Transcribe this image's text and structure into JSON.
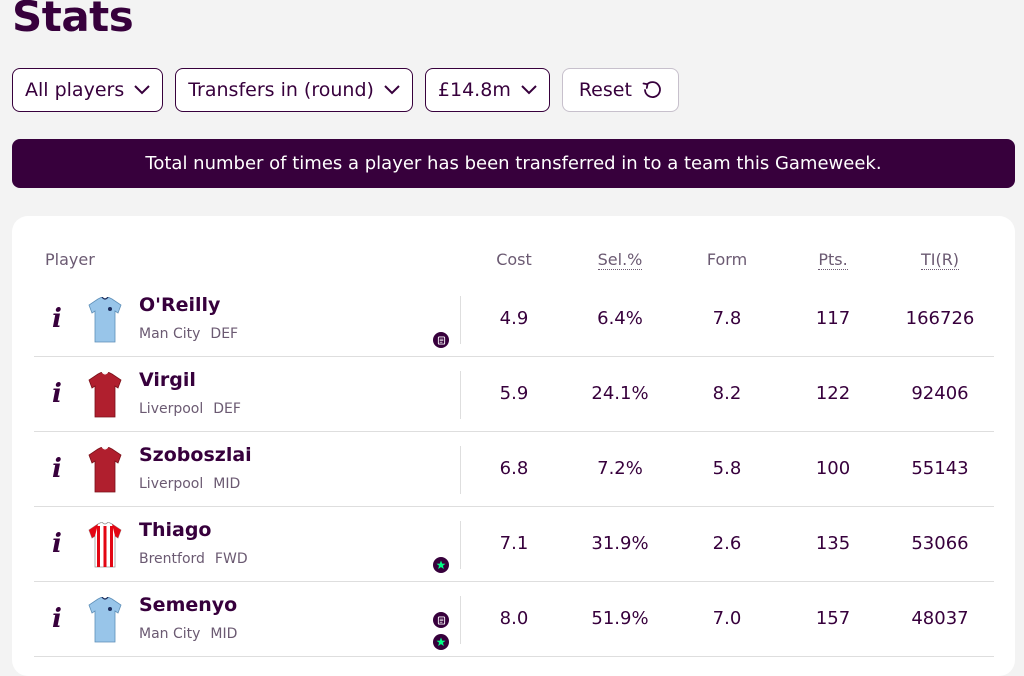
{
  "page": {
    "title": "Stats"
  },
  "filters": {
    "players": "All players",
    "sort": "Transfers in (round)",
    "price": "£14.8m",
    "reset": "Reset"
  },
  "banner": "Total number of times a player has been transferred in to a team this Gameweek.",
  "table": {
    "headers": {
      "player": "Player",
      "cost": "Cost",
      "sel": "Sel.%",
      "form": "Form",
      "pts": "Pts.",
      "ti": "TI(R)"
    },
    "info_glyph": "i",
    "rows": [
      {
        "name": "O'Reilly",
        "team": "Man City",
        "pos": "DEF",
        "cost": "4.9",
        "sel": "6.4%",
        "form": "7.8",
        "pts": "117",
        "ti": "166726",
        "shirt": "man-city-shirt",
        "badges": [
          "news-icon"
        ]
      },
      {
        "name": "Virgil",
        "team": "Liverpool",
        "pos": "DEF",
        "cost": "5.9",
        "sel": "24.1%",
        "form": "8.2",
        "pts": "122",
        "ti": "92406",
        "shirt": "liverpool-shirt",
        "badges": []
      },
      {
        "name": "Szoboszlai",
        "team": "Liverpool",
        "pos": "MID",
        "cost": "6.8",
        "sel": "7.2%",
        "form": "5.8",
        "pts": "100",
        "ti": "55143",
        "shirt": "liverpool-shirt",
        "badges": []
      },
      {
        "name": "Thiago",
        "team": "Brentford",
        "pos": "FWD",
        "cost": "7.1",
        "sel": "31.9%",
        "form": "2.6",
        "pts": "135",
        "ti": "53066",
        "shirt": "brentford-shirt",
        "badges": [
          "star-icon"
        ]
      },
      {
        "name": "Semenyo",
        "team": "Man City",
        "pos": "MID",
        "cost": "8.0",
        "sel": "51.9%",
        "form": "7.0",
        "pts": "157",
        "ti": "48037",
        "shirt": "man-city-shirt",
        "badges": [
          "news-icon",
          "star-icon"
        ]
      }
    ]
  },
  "colors": {
    "primary": "#37003c",
    "muted": "#6b5a72",
    "accent_green": "#00ff87",
    "man_city": "#98c5e9",
    "liverpool": "#b01f2e",
    "brentford_red": "#e30613"
  }
}
